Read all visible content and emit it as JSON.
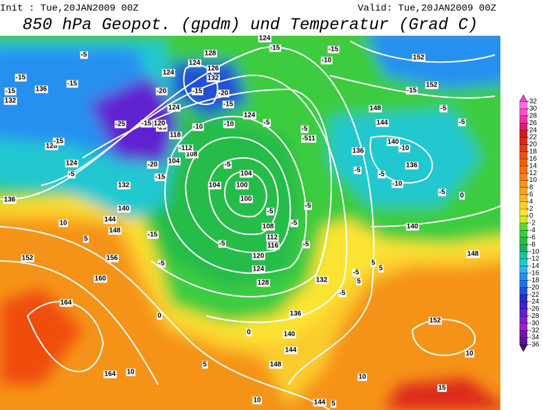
{
  "header": {
    "init": "Init : Tue,20JAN2009 00Z",
    "valid": "Valid: Tue,20JAN2009 00Z",
    "title": "850 hPa Geopot. (gpdm) und Temperatur (Grad C)"
  },
  "colorbar": {
    "levels": [
      32,
      30,
      28,
      26,
      24,
      22,
      20,
      18,
      16,
      14,
      12,
      10,
      8,
      6,
      4,
      2,
      0,
      -2,
      -4,
      -6,
      -8,
      -10,
      -12,
      -14,
      -16,
      -18,
      -20,
      -22,
      -24,
      -26,
      -28,
      -30,
      -32,
      -34,
      -36
    ],
    "colors": [
      "#ff40d0",
      "#ff70e0",
      "#ff50c8",
      "#f030a0",
      "#d81e6e",
      "#c81e1e",
      "#dc2a1a",
      "#e83c14",
      "#f04e10",
      "#f0600c",
      "#f5700e",
      "#f58214",
      "#f5931a",
      "#f7a420",
      "#f9b82a",
      "#fbcc2e",
      "#fde432",
      "#c8e82a",
      "#60d838",
      "#3ccc40",
      "#28bc48",
      "#20b060",
      "#20c0a0",
      "#20c8d0",
      "#30b0f0",
      "#2890f0",
      "#2070e8",
      "#2050d8",
      "#2030c0",
      "#4020c8",
      "#6020d0",
      "#8020d0",
      "#a020c8",
      "#7018a8",
      "#581890",
      "#401070"
    ]
  },
  "map": {
    "labels": [
      "-15",
      "136",
      "-15",
      "-5",
      "-15",
      "132",
      "-25",
      "-25",
      "-15",
      "-20",
      "-15",
      "128",
      "-15",
      "124",
      "-5",
      "132",
      "136",
      "140",
      "144",
      "148",
      "-15",
      "10",
      "5",
      "152",
      "156",
      "-5",
      "160",
      "164",
      "0",
      "164",
      "10",
      "5",
      "100",
      "100",
      "104",
      "104",
      "-5",
      "104",
      "108",
      "-5",
      "108",
      "112",
      "116",
      "-5",
      "120",
      "124",
      "128",
      "132",
      "136",
      "140",
      "144",
      "148",
      "0",
      "-5",
      "124",
      "-5",
      "-5",
      "-5",
      "-10",
      "-10",
      "120",
      "118",
      "-112",
      "124",
      "-20",
      "124",
      "128",
      "124",
      "126",
      "132",
      "-15",
      "-20",
      "-15",
      "-15",
      "124",
      "-15",
      "-10",
      "148",
      "144",
      "140",
      "-10",
      "136",
      "-10",
      "-5",
      "0",
      "140",
      "148",
      "-5",
      "152",
      "-15",
      "-5",
      "152",
      "152",
      "10",
      "15",
      "10",
      "10",
      "144",
      "5",
      "-5",
      "5",
      "5",
      "-5",
      "5",
      "-5",
      "-511",
      "136",
      "-5",
      "-5"
    ]
  }
}
